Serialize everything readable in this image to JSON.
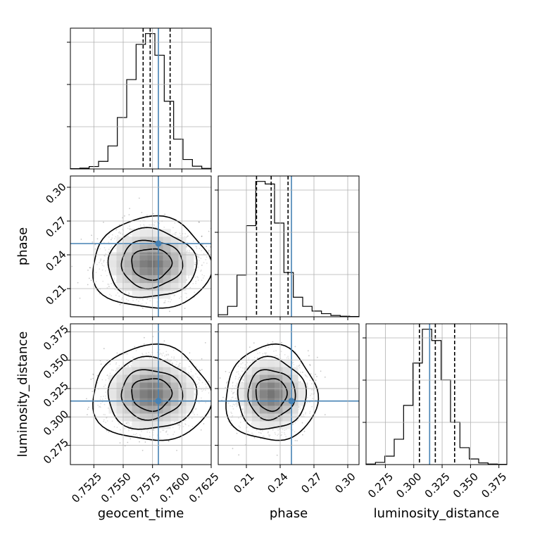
{
  "chart_data": {
    "type": "corner",
    "parameters": [
      "geocent_time",
      "phase",
      "luminosity_distance"
    ],
    "xlabels": [
      "geocent_time",
      "phase",
      "luminosity_distance"
    ],
    "ylabels": [
      "phase",
      "luminosity_distance"
    ],
    "ranges": [
      [
        0.7505,
        0.7625
      ],
      [
        0.185,
        0.31
      ],
      [
        0.258,
        0.382
      ]
    ],
    "ticks": [
      [
        0.7525,
        0.755,
        0.7575,
        0.76,
        0.7625
      ],
      [
        0.21,
        0.24,
        0.27,
        0.3
      ],
      [
        0.275,
        0.3,
        0.325,
        0.35,
        0.375
      ]
    ],
    "tick_labels": [
      [
        "0.7525",
        "0.7550",
        "0.7575",
        "0.7600",
        "0.7625"
      ],
      [
        "0.21",
        "0.24",
        "0.27",
        "0.30"
      ],
      [
        "0.275",
        "0.300",
        "0.325",
        "0.350",
        "0.375"
      ]
    ],
    "truths": [
      0.758,
      0.25,
      0.314
    ],
    "truth_color": "#4682b4",
    "quantiles": [
      [
        0.7567,
        0.7573,
        0.759
      ],
      [
        0.219,
        0.232,
        0.247
      ],
      [
        0.305,
        0.319,
        0.336
      ]
    ],
    "histograms": [
      {
        "bin_edges": [
          0.7505,
          0.7513,
          0.7521,
          0.7529,
          0.7537,
          0.7545,
          0.7553,
          0.7561,
          0.7569,
          0.7577,
          0.7585,
          0.7593,
          0.7601,
          0.7609,
          0.7617,
          0.7625
        ],
        "counts": [
          1,
          3,
          9,
          28,
          85,
          190,
          330,
          460,
          500,
          420,
          250,
          110,
          35,
          10,
          2
        ]
      },
      {
        "bin_edges": [
          0.185,
          0.19333,
          0.20167,
          0.21,
          0.21833,
          0.22667,
          0.235,
          0.24333,
          0.25167,
          0.26,
          0.26833,
          0.27667,
          0.285,
          0.29333,
          0.30167,
          0.31
        ],
        "counts": [
          8,
          40,
          160,
          350,
          520,
          510,
          360,
          170,
          75,
          40,
          22,
          12,
          5,
          2,
          1
        ]
      },
      {
        "bin_edges": [
          0.258,
          0.26627,
          0.27453,
          0.2828,
          0.29107,
          0.29933,
          0.3076,
          0.31587,
          0.32413,
          0.3324,
          0.34067,
          0.34893,
          0.3572,
          0.36547,
          0.37373,
          0.382
        ],
        "counts": [
          2,
          8,
          30,
          90,
          210,
          360,
          480,
          440,
          300,
          150,
          60,
          20,
          6,
          2,
          1
        ]
      }
    ],
    "joint_centers": [
      {
        "x": 0.7574,
        "y": 0.232,
        "sx": 0.0018,
        "sy": 0.0145
      },
      {
        "x": 0.7574,
        "y": 0.32,
        "sx": 0.0018,
        "sy": 0.015
      },
      {
        "x": 0.232,
        "y": 0.32,
        "sx": 0.0145,
        "sy": 0.015
      }
    ],
    "grid": true
  }
}
